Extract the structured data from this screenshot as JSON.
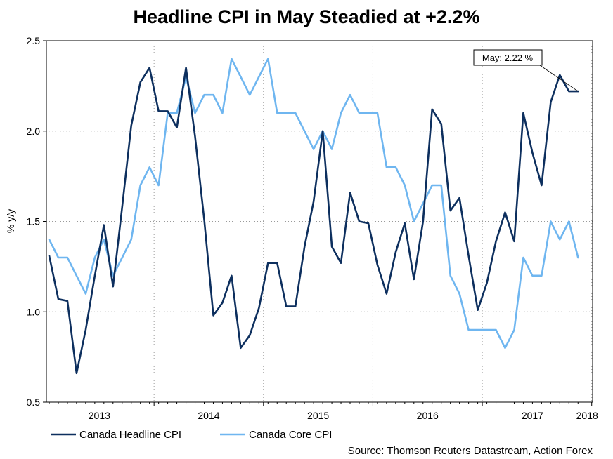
{
  "chart_data": {
    "type": "line",
    "title": "Headline CPI in May Steadied at +2.2%",
    "ylabel": "% y/y",
    "xlabel": "",
    "ylim": [
      0.5,
      2.5
    ],
    "yticks": [
      "0.5",
      "1.0",
      "1.5",
      "2.0",
      "2.5"
    ],
    "x_start": "2013-01",
    "xtick_labels": [
      "2013",
      "2014",
      "2015",
      "2016",
      "2017",
      "2018"
    ],
    "grid": true,
    "legend_position": "bottom-left",
    "series": [
      {
        "name": "Canada Headline CPI",
        "color": "#0d2f5e",
        "values": [
          1.31,
          1.07,
          1.06,
          0.66,
          0.9,
          1.2,
          1.48,
          1.14,
          1.58,
          2.03,
          2.27,
          2.35,
          2.11,
          2.11,
          2.02,
          2.35,
          1.97,
          1.51,
          0.98,
          1.05,
          1.2,
          0.8,
          0.87,
          1.02,
          1.27,
          1.27,
          1.03,
          1.03,
          1.36,
          1.61,
          2.0,
          1.36,
          1.27,
          1.66,
          1.5,
          1.49,
          1.26,
          1.1,
          1.33,
          1.49,
          1.18,
          1.5,
          2.12,
          2.04,
          1.56,
          1.63,
          1.31,
          1.01,
          1.16,
          1.39,
          1.55,
          1.39,
          2.1,
          1.88,
          1.7,
          2.16,
          2.31,
          2.22,
          2.22
        ]
      },
      {
        "name": "Canada Core CPI",
        "color": "#6fb6f0",
        "values": [
          1.4,
          1.3,
          1.3,
          1.2,
          1.1,
          1.3,
          1.4,
          1.2,
          1.3,
          1.4,
          1.7,
          1.8,
          1.7,
          2.1,
          2.1,
          2.3,
          2.1,
          2.2,
          2.2,
          2.1,
          2.4,
          2.3,
          2.2,
          2.3,
          2.4,
          2.1,
          2.1,
          2.1,
          2.0,
          1.9,
          2.0,
          1.9,
          2.1,
          2.2,
          2.1,
          2.1,
          2.1,
          1.8,
          1.8,
          1.7,
          1.5,
          1.6,
          1.7,
          1.7,
          1.2,
          1.1,
          0.9,
          0.9,
          0.9,
          0.9,
          0.8,
          0.9,
          1.3,
          1.2,
          1.2,
          1.5,
          1.4,
          1.5,
          1.3
        ]
      }
    ],
    "annotation": {
      "text": "May: 2.22 %",
      "series": "Canada Headline CPI",
      "point_index": 58
    },
    "source": "Source: Thomson Reuters Datastream, Action Forex"
  }
}
